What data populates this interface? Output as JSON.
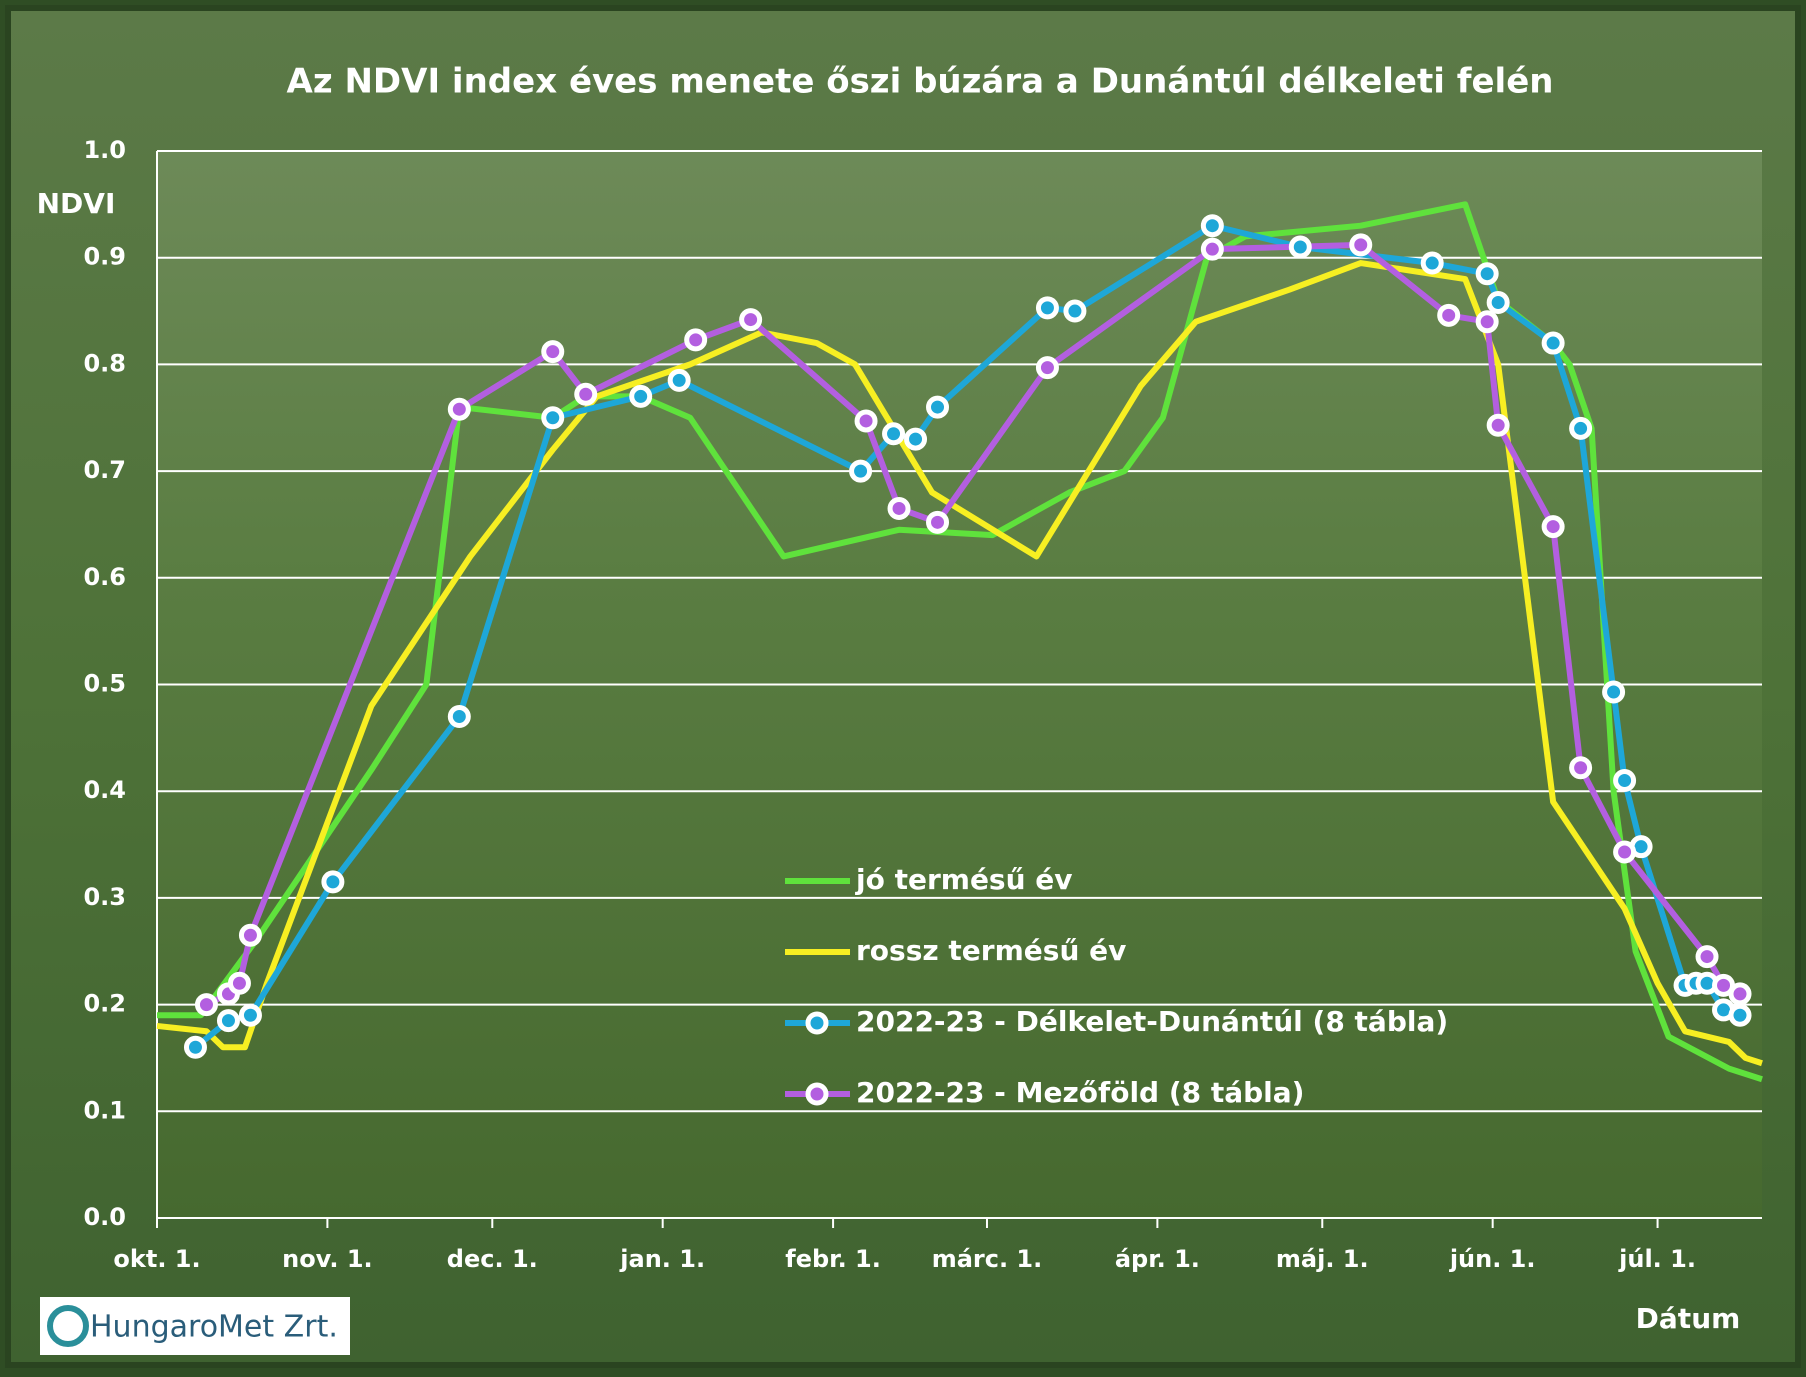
{
  "chart_data": {
    "type": "line",
    "title": "Az NDVI index éves menete őszi búzára a Dunántúl délkeleti felén",
    "y_label": "NDVI",
    "x_label": "Dátum",
    "logo": "HungaroMet Zrt.",
    "xlim": [
      0,
      292
    ],
    "ylim": [
      0,
      1.0
    ],
    "grid": true,
    "xticks": [
      {
        "value": 0,
        "label": "okt. 1."
      },
      {
        "value": 31,
        "label": "nov. 1."
      },
      {
        "value": 61,
        "label": "dec. 1."
      },
      {
        "value": 92,
        "label": "jan. 1."
      },
      {
        "value": 123,
        "label": "febr. 1."
      },
      {
        "value": 151,
        "label": "márc. 1."
      },
      {
        "value": 182,
        "label": "ápr. 1."
      },
      {
        "value": 212,
        "label": "máj. 1."
      },
      {
        "value": 243,
        "label": "jún. 1."
      },
      {
        "value": 273,
        "label": "júl. 1."
      }
    ],
    "yticks": [
      {
        "value": 0,
        "label": "0.0"
      },
      0.1,
      0.2,
      0.3,
      0.4,
      0.5,
      0.6,
      0.7,
      0.8,
      0.9,
      {
        "value": 1.0,
        "label": "1.0"
      }
    ],
    "series": [
      {
        "name": "jó termésű év",
        "color": "#5fe23c",
        "markers": false,
        "x": [
          0,
          8,
          18,
          39,
          49,
          55,
          72,
          78,
          88,
          97,
          114,
          135,
          152,
          166,
          176,
          183,
          191,
          198,
          219,
          238,
          244,
          254,
          257,
          261,
          265,
          269,
          275,
          286,
          292
        ],
        "values": [
          0.19,
          0.19,
          0.26,
          0.42,
          0.5,
          0.76,
          0.75,
          0.77,
          0.77,
          0.75,
          0.62,
          0.645,
          0.64,
          0.68,
          0.7,
          0.75,
          0.9,
          0.92,
          0.93,
          0.95,
          0.86,
          0.82,
          0.8,
          0.74,
          0.4,
          0.25,
          0.17,
          0.14,
          0.13
        ]
      },
      {
        "name": "rossz termésű év",
        "color": "#f7ef22",
        "markers": false,
        "x": [
          0,
          9,
          12,
          16,
          20,
          39,
          57,
          72,
          80,
          97,
          110,
          120,
          127,
          141,
          160,
          179,
          189,
          206,
          219,
          238,
          244,
          254,
          267,
          273,
          278,
          286,
          289,
          292
        ],
        "values": [
          0.18,
          0.175,
          0.16,
          0.16,
          0.22,
          0.48,
          0.62,
          0.72,
          0.77,
          0.8,
          0.83,
          0.82,
          0.8,
          0.68,
          0.62,
          0.78,
          0.84,
          0.87,
          0.895,
          0.88,
          0.8,
          0.39,
          0.29,
          0.22,
          0.175,
          0.165,
          0.15,
          0.145
        ]
      },
      {
        "name": "2022-23 - Délkelet-Dunántúl (8 tábla)",
        "color": "#1ea7d8",
        "markers": true,
        "x": [
          7,
          13,
          17,
          32,
          55,
          72,
          88,
          95,
          128,
          134,
          138,
          142,
          162,
          167,
          192,
          208,
          232,
          242,
          244,
          254,
          259,
          265,
          267,
          270,
          278,
          280,
          282,
          285,
          288
        ],
        "values": [
          0.16,
          0.185,
          0.19,
          0.315,
          0.47,
          0.75,
          0.77,
          0.785,
          0.7,
          0.735,
          0.73,
          0.76,
          0.853,
          0.85,
          0.93,
          0.91,
          0.895,
          0.885,
          0.858,
          0.82,
          0.74,
          0.493,
          0.41,
          0.348,
          0.218,
          0.22,
          0.22,
          0.195,
          0.19
        ]
      },
      {
        "name": "2022-23 - Mezőföld (8 tábla)",
        "color": "#b35fe0",
        "markers": true,
        "x": [
          9,
          13,
          15,
          17,
          55,
          72,
          78,
          98,
          108,
          129,
          135,
          142,
          162,
          192,
          219,
          235,
          242,
          244,
          254,
          259,
          267,
          282,
          285,
          288
        ],
        "values": [
          0.2,
          0.21,
          0.22,
          0.265,
          0.758,
          0.812,
          0.772,
          0.823,
          0.842,
          0.747,
          0.665,
          0.652,
          0.797,
          0.908,
          0.912,
          0.846,
          0.84,
          0.743,
          0.648,
          0.422,
          0.343,
          0.245,
          0.218,
          0.21
        ]
      }
    ]
  }
}
